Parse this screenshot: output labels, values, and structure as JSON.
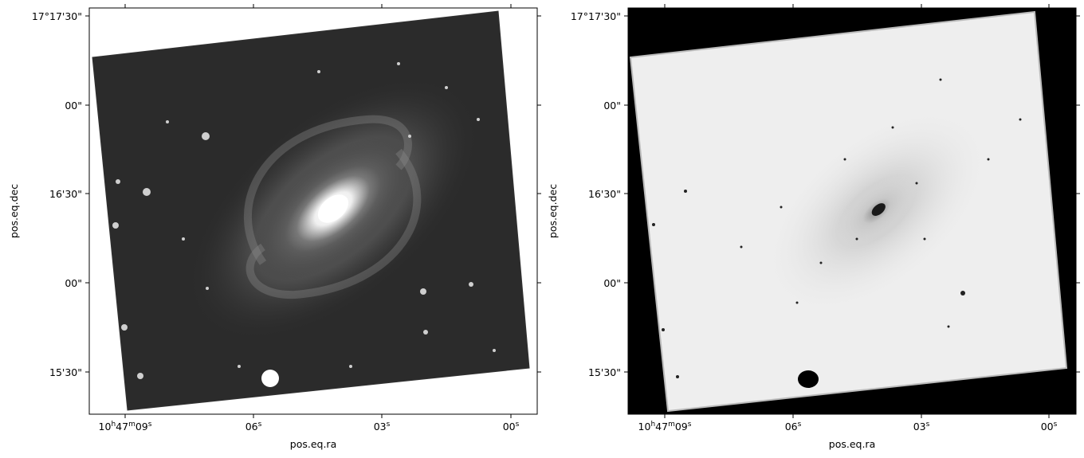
{
  "panels": [
    {
      "id": "left",
      "description_name": "wcs-image-panel-left",
      "xlabel": "pos.eq.ra",
      "ylabel": "pos.eq.dec",
      "x_ticks": [
        {
          "main": "10",
          "sup1": "h",
          "mid": "47",
          "sup2": "m",
          "end": "09",
          "sup3": "s"
        },
        {
          "main": "06",
          "sup3": "s"
        },
        {
          "main": "03",
          "sup3": "s"
        },
        {
          "main": "00",
          "sup3": "s"
        }
      ],
      "y_ticks": [
        "17°17'30\"",
        "00\"",
        "16'30\"",
        "00\"",
        "15'30\""
      ]
    },
    {
      "id": "right",
      "description_name": "wcs-image-panel-right",
      "xlabel": "pos.eq.ra",
      "ylabel": "pos.eq.dec",
      "x_ticks": [
        {
          "main": "10",
          "sup1": "h",
          "mid": "47",
          "sup2": "m",
          "end": "09",
          "sup3": "s"
        },
        {
          "main": "06",
          "sup3": "s"
        },
        {
          "main": "03",
          "sup3": "s"
        },
        {
          "main": "00",
          "sup3": "s"
        }
      ],
      "y_ticks": [
        "17°17'30\"",
        "00\"",
        "16'30\"",
        "00\"",
        "15'30\""
      ]
    }
  ],
  "colors": {
    "background": "#ffffff",
    "left_frame_fill": "#2a2a2a",
    "right_background": "#000000",
    "right_frame_fill": "#efefef"
  }
}
